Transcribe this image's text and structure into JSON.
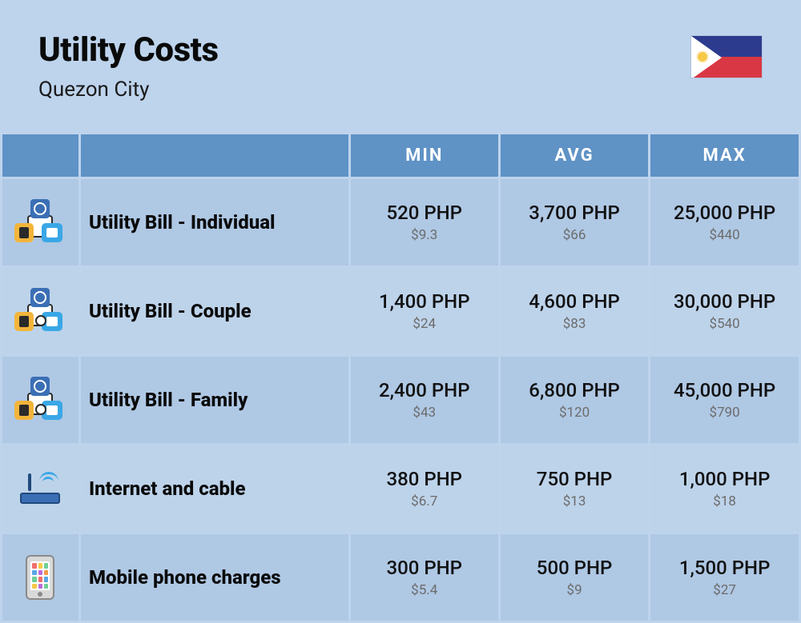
{
  "header": {
    "title": "Utility Costs",
    "subtitle": "Quezon City"
  },
  "flag": {
    "top_color": "#2d3b8f",
    "bottom_color": "#d93744",
    "triangle_color": "#ffffff",
    "sun_color": "#f7c948"
  },
  "colors": {
    "page_bg": "#bed4ed",
    "header_bg": "#5f92c5",
    "header_text": "#ffffff",
    "row_bg": "#afc8e4",
    "row_alt_bg": "#bdd3ea",
    "label_text": "#0a0a0a",
    "value_text": "#111111",
    "sub_text": "#6c6c6c"
  },
  "typography": {
    "title_fontsize": 42,
    "title_weight": 800,
    "subtitle_fontsize": 26,
    "header_fontsize": 22,
    "label_fontsize": 24,
    "label_weight": 800,
    "value_fontsize": 24,
    "sub_fontsize": 17
  },
  "table": {
    "columns": [
      "",
      "",
      "MIN",
      "AVG",
      "MAX"
    ],
    "rows": [
      {
        "icon": "utility-individual",
        "label": "Utility Bill - Individual",
        "min_php": "520 PHP",
        "min_usd": "$9.3",
        "avg_php": "3,700 PHP",
        "avg_usd": "$66",
        "max_php": "25,000 PHP",
        "max_usd": "$440"
      },
      {
        "icon": "utility-couple",
        "label": "Utility Bill - Couple",
        "min_php": "1,400 PHP",
        "min_usd": "$24",
        "avg_php": "4,600 PHP",
        "avg_usd": "$83",
        "max_php": "30,000 PHP",
        "max_usd": "$540"
      },
      {
        "icon": "utility-family",
        "label": "Utility Bill - Family",
        "min_php": "2,400 PHP",
        "min_usd": "$43",
        "avg_php": "6,800 PHP",
        "avg_usd": "$120",
        "max_php": "45,000 PHP",
        "max_usd": "$790"
      },
      {
        "icon": "internet-cable",
        "label": "Internet and cable",
        "min_php": "380 PHP",
        "min_usd": "$6.7",
        "avg_php": "750 PHP",
        "avg_usd": "$13",
        "max_php": "1,000 PHP",
        "max_usd": "$18"
      },
      {
        "icon": "mobile-phone",
        "label": "Mobile phone charges",
        "min_php": "300 PHP",
        "min_usd": "$5.4",
        "avg_php": "500 PHP",
        "avg_usd": "$9",
        "max_php": "1,500 PHP",
        "max_usd": "$27"
      }
    ]
  },
  "phone_app_colors": [
    "#f26d6d",
    "#f7c948",
    "#6fcf97",
    "#5aa7e6",
    "#bb6bd9",
    "#f2994a",
    "#6fcf97",
    "#f26d6d",
    "#5aa7e6",
    "#f7c948",
    "#bb6bd9",
    "#6fcf97"
  ]
}
